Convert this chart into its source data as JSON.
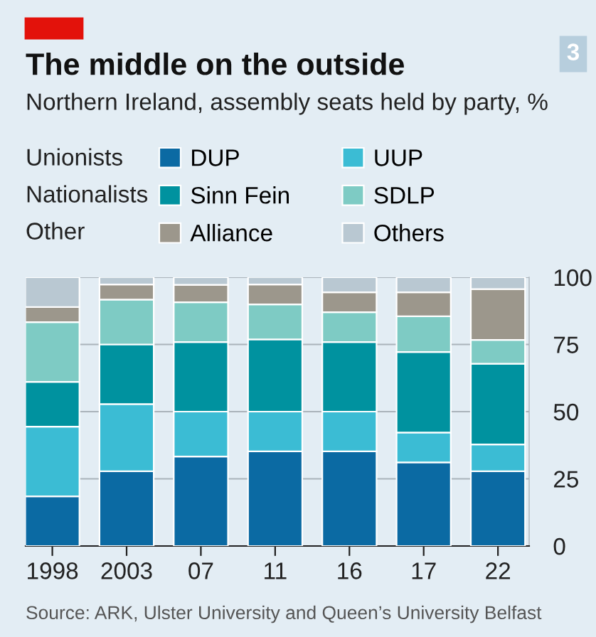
{
  "chart_data": {
    "type": "bar",
    "stacked": true,
    "title": "The middle on the outside",
    "subtitle": "Northern Ireland, assembly seats held by party, %",
    "categories": [
      "1998",
      "2003",
      "07",
      "11",
      "16",
      "17",
      "22"
    ],
    "series": [
      {
        "name": "DUP",
        "color": "#0b6aa3",
        "values": [
          18.5,
          27.8,
          33.3,
          35.2,
          35.2,
          31.1,
          27.8
        ]
      },
      {
        "name": "UUP",
        "color": "#3bbcd4",
        "values": [
          25.9,
          25,
          16.7,
          14.8,
          14.8,
          11.1,
          10
        ]
      },
      {
        "name": "Sinn Fein",
        "color": "#00929f",
        "values": [
          16.7,
          22.2,
          25.9,
          26.9,
          25.9,
          30,
          30
        ]
      },
      {
        "name": "SDLP",
        "color": "#7ecbc4",
        "values": [
          22.2,
          16.7,
          14.8,
          13,
          11.1,
          13.3,
          8.9
        ]
      },
      {
        "name": "Alliance",
        "color": "#9c978c",
        "values": [
          5.6,
          5.6,
          6.5,
          7.4,
          7.4,
          8.9,
          18.9
        ]
      },
      {
        "name": "Others",
        "color": "#b9c8d2",
        "values": [
          11.1,
          2.8,
          2.8,
          2.8,
          5.6,
          5.6,
          4.4
        ]
      }
    ],
    "ylim": [
      0,
      100
    ],
    "yticks": [
      0,
      25,
      50,
      75,
      100
    ],
    "grid": "y",
    "legend": "top left",
    "annotations": [
      "Unionists",
      "Nationalists",
      "Other",
      "3",
      "Source: ARK, Ulster University and Queen’s University Belfast"
    ]
  }
}
